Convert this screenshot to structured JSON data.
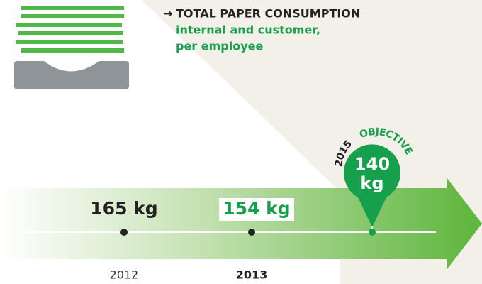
{
  "header": {
    "title": "TOTAL PAPER CONSUMPTION",
    "subtitle": [
      "internal and customer,",
      "per employee"
    ]
  },
  "timeline": [
    {
      "year": "2012",
      "value": "165 kg"
    },
    {
      "year": "2013",
      "value": "154 kg"
    },
    {
      "year": "2015",
      "tag": "OBJECTIVE",
      "value": "140",
      "unit": "kg"
    }
  ]
}
